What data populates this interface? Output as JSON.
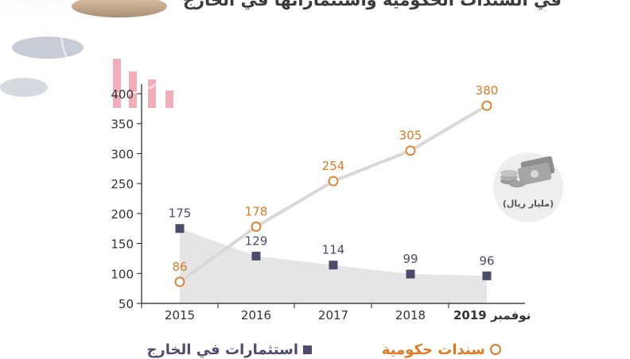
{
  "title": "في السندات الحكومية واستثماراتها في الخارج",
  "unit_label": "(مليار ريال)",
  "legend": {
    "bonds": "سندات حكومية",
    "abroad": "استثمارات في الخارج"
  },
  "colors": {
    "bonds": "#e07a22",
    "abroad": "#4b4b6e",
    "axis_text": "#333333",
    "bonds_line": "#d8d8d8",
    "abroad_area": "#dcdcdc"
  },
  "chart_data": {
    "type": "line",
    "categories": [
      "2015",
      "2016",
      "2017",
      "2018",
      "نوفمبر 2019"
    ],
    "series": [
      {
        "name": "سندات حكومية",
        "values": [
          86,
          178,
          254,
          305,
          380
        ]
      },
      {
        "name": "استثمارات في الخارج",
        "values": [
          175,
          129,
          114,
          99,
          96
        ]
      }
    ],
    "yticks": [
      50,
      100,
      150,
      200,
      250,
      300,
      350,
      400
    ],
    "ylim": [
      50,
      400
    ],
    "grid": false
  }
}
